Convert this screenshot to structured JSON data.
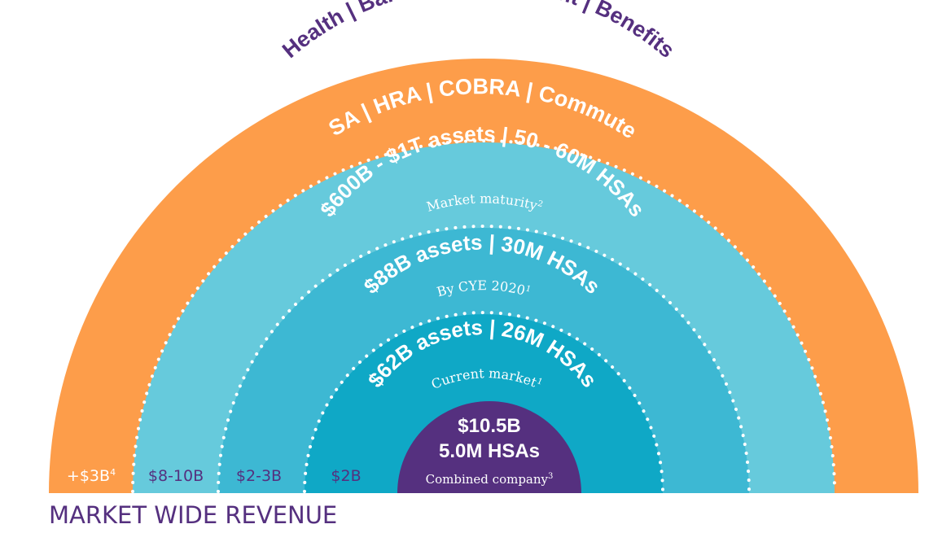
{
  "outer_caption": "Health | Banking | Retirement | Benefits",
  "colors": {
    "orange": "#fd9d4a",
    "light_blue": "#66cadc",
    "mid_blue": "#3db8d3",
    "dark_blue": "#0fa8c6",
    "purple": "#55307f",
    "dots": "#ffffff"
  },
  "rings": [
    {
      "title": "FSA | HRA | COBRA | Commuter",
      "subtitle": "",
      "revenue": "+$3B",
      "revenue_note": "4"
    },
    {
      "title": "$600B - $1T assets | 50 - 60M HSAs",
      "subtitle": "Market maturity",
      "subtitle_note": "2",
      "revenue": "$8-10B"
    },
    {
      "title": "$88B assets | 30M HSAs",
      "subtitle": "By CYE 2020",
      "subtitle_note": "1",
      "revenue": "$2-3B"
    },
    {
      "title": "$62B assets | 26M HSAs",
      "subtitle": "Current market",
      "subtitle_note": "1",
      "revenue": "$2B"
    }
  ],
  "center": {
    "line1": "$10.5B",
    "line2": "5.0M HSAs",
    "subtitle": "Combined company",
    "subtitle_note": "3"
  },
  "footer": "MARKET WIDE REVENUE"
}
